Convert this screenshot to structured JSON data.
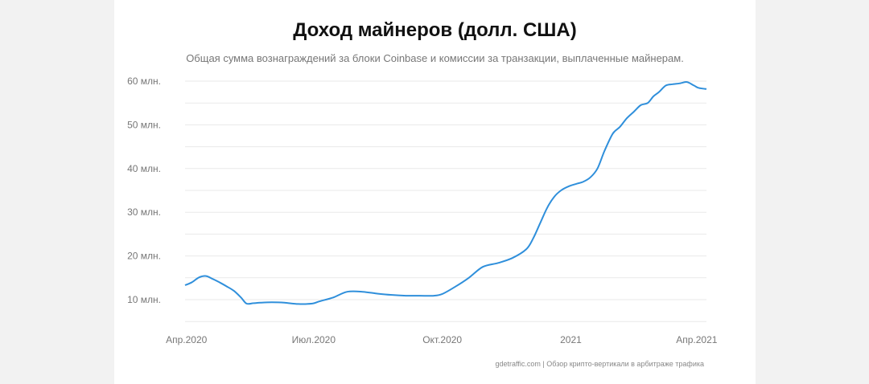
{
  "header": {
    "title": "Доход майнеров (долл. США)",
    "subtitle": "Общая сумма вознаграждений за блоки Coinbase и комиссии за транзакции, выплаченные майнерам."
  },
  "footer": {
    "source": "gdetraffic.com | Обзор крипто-вертикали в арбитраже трафика"
  },
  "colors": {
    "line": "#2f8fdb",
    "grid": "#e9e9e9",
    "text": "#777777"
  },
  "chart_data": {
    "type": "line",
    "title": "Доход майнеров (долл. США)",
    "subtitle": "Общая сумма вознаграждений за блоки Coinbase и комиссии за транзакции, выплаченные майнерам.",
    "xlabel": "",
    "ylabel": "",
    "y_ticks": [
      {
        "value": 10000000,
        "label": "10 млн."
      },
      {
        "value": 20000000,
        "label": "20 млн."
      },
      {
        "value": 30000000,
        "label": "30 млн."
      },
      {
        "value": 40000000,
        "label": "40 млн."
      },
      {
        "value": 50000000,
        "label": "50 млн."
      },
      {
        "value": 60000000,
        "label": "60 млн."
      }
    ],
    "x_ticks": [
      {
        "date": "2020-04-01",
        "label": "Апр.2020"
      },
      {
        "date": "2020-07-01",
        "label": "Июл.2020"
      },
      {
        "date": "2020-10-01",
        "label": "Окт.2020"
      },
      {
        "date": "2021-01-01",
        "label": "2021"
      },
      {
        "date": "2021-04-01",
        "label": "Апр.2021"
      }
    ],
    "xlim": [
      "2020-03-31",
      "2021-04-08"
    ],
    "ylim": [
      5000000,
      60000000
    ],
    "grid": true,
    "legend": "none",
    "series": [
      {
        "x": [
          "2020-03-31",
          "2020-04-05",
          "2020-04-10",
          "2020-04-15",
          "2020-04-20",
          "2020-04-25",
          "2020-04-30",
          "2020-05-05",
          "2020-05-10",
          "2020-05-14",
          "2020-05-19",
          "2020-05-24",
          "2020-06-01",
          "2020-06-10",
          "2020-06-20",
          "2020-06-30",
          "2020-07-05",
          "2020-07-15",
          "2020-07-25",
          "2020-08-05",
          "2020-08-15",
          "2020-08-25",
          "2020-09-05",
          "2020-09-15",
          "2020-09-25",
          "2020-10-01",
          "2020-10-10",
          "2020-10-20",
          "2020-10-30",
          "2020-11-10",
          "2020-11-20",
          "2020-11-30",
          "2020-12-05",
          "2020-12-10",
          "2020-12-15",
          "2020-12-20",
          "2020-12-25",
          "2020-12-31",
          "2021-01-05",
          "2021-01-10",
          "2021-01-15",
          "2021-01-20",
          "2021-01-25",
          "2021-01-31",
          "2021-02-05",
          "2021-02-10",
          "2021-02-15",
          "2021-02-20",
          "2021-02-25",
          "2021-03-01",
          "2021-03-05",
          "2021-03-10",
          "2021-03-15",
          "2021-03-20",
          "2021-03-25",
          "2021-03-30",
          "2021-04-02",
          "2021-04-05",
          "2021-04-08"
        ],
        "values": [
          13300000,
          14000000,
          15100000,
          15400000,
          14700000,
          13900000,
          13000000,
          12000000,
          10500000,
          9100000,
          9200000,
          9300000,
          9400000,
          9300000,
          9000000,
          9100000,
          9600000,
          10500000,
          11800000,
          11800000,
          11400000,
          11100000,
          10900000,
          10900000,
          10900000,
          11300000,
          12900000,
          15000000,
          17500000,
          18400000,
          19500000,
          21500000,
          24000000,
          27500000,
          31000000,
          33500000,
          35000000,
          36000000,
          36500000,
          37000000,
          38000000,
          40000000,
          44000000,
          48000000,
          49500000,
          51500000,
          53000000,
          54500000,
          55000000,
          56500000,
          57500000,
          59000000,
          59300000,
          59500000,
          59800000,
          59000000,
          58500000,
          58300000,
          58200000
        ]
      }
    ]
  }
}
